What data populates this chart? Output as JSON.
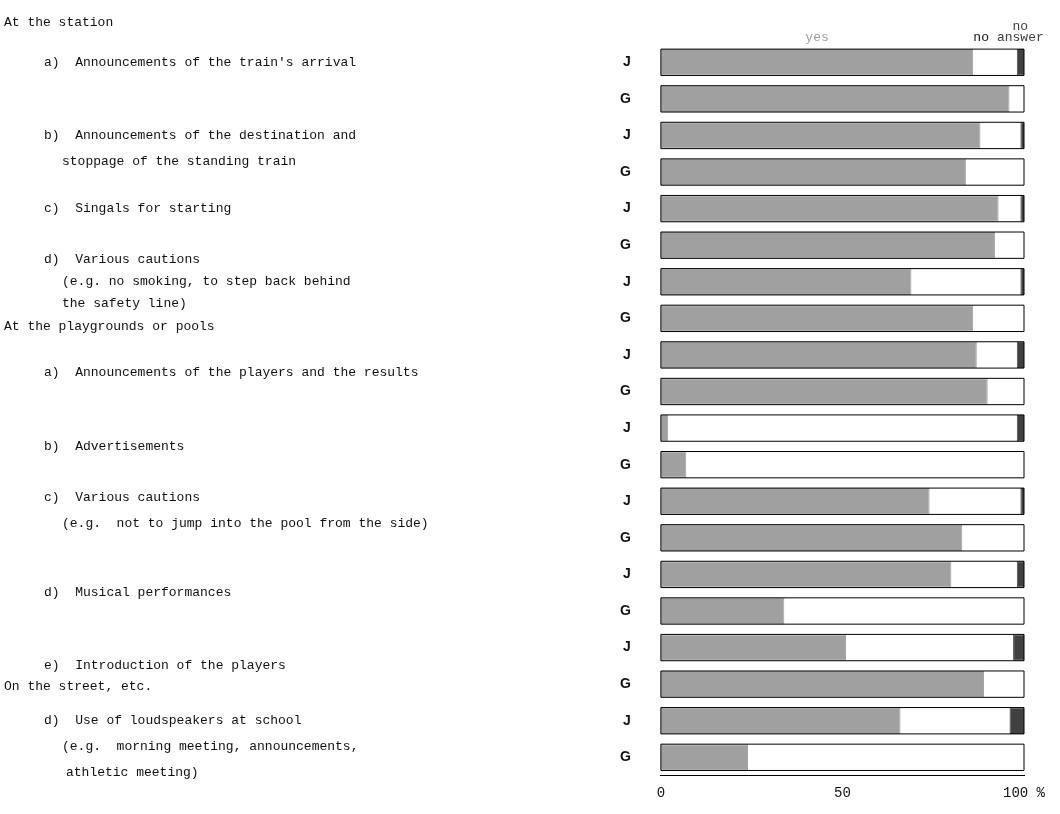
{
  "chart_data": {
    "type": "bar",
    "orientation": "horizontal",
    "stacked": true,
    "categories": [
      "J",
      "G",
      "J",
      "G",
      "J",
      "G",
      "J",
      "G",
      "J",
      "G",
      "J",
      "G",
      "J",
      "G",
      "J",
      "G",
      "J",
      "G",
      "J",
      "G"
    ],
    "series": [
      {
        "name": "yes",
        "color": "#a0a0a0",
        "values": [
          86,
          96,
          88,
          84,
          93,
          92,
          69,
          86,
          87,
          90,
          2,
          7,
          74,
          83,
          80,
          34,
          51,
          89,
          66,
          24
        ]
      },
      {
        "name": "no",
        "color": "#ffffff",
        "values": [
          12,
          4,
          11,
          16,
          6,
          8,
          30,
          14,
          11,
          10,
          96,
          93,
          25,
          17,
          18,
          66,
          46,
          11,
          30,
          76
        ]
      },
      {
        "name": "no answer",
        "color": "#404040",
        "values": [
          2,
          null,
          1,
          null,
          1,
          null,
          1,
          null,
          2,
          null,
          2,
          null,
          1,
          null,
          2,
          null,
          3,
          null,
          4,
          null
        ]
      }
    ],
    "xlim": [
      0,
      100
    ],
    "xticks": [
      0,
      50,
      {
        "value": 100,
        "label": "100 %"
      }
    ],
    "grid": false,
    "annotations": [
      "At the station",
      "a)  Announcements of the train's arrival",
      "b)  Announcements of the destination and",
      "stoppage of the standing train",
      "c)  Singals for starting",
      "d)  Various cautions",
      "(e.g. no smoking, to step back behind",
      "the safety line)",
      "At the playgrounds or pools",
      "a)  Announcements of the players and the results",
      "b)  Advertisements",
      "c)  Various cautions",
      "(e.g.  not to jump into the pool from the side)",
      "d)  Musical performances",
      "e)  Introduction of the players",
      "On the street, etc.",
      "d)  Use of loudspeakers at school",
      "(e.g.  morning meeting, announcements,",
      "athletic meeting)"
    ]
  }
}
